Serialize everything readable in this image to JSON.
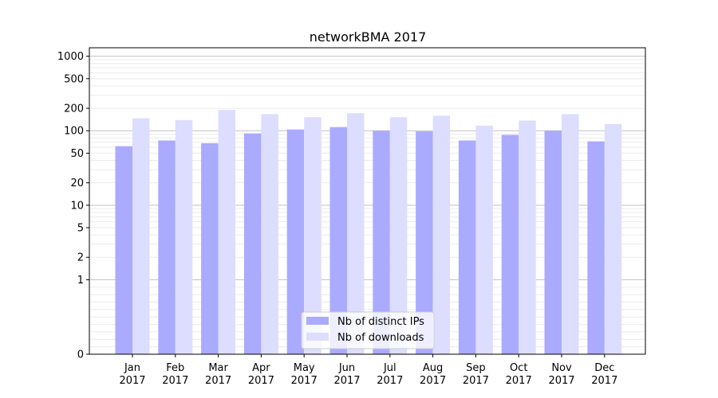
{
  "chart_data": {
    "type": "bar",
    "title": "networkBMA 2017",
    "xlabel": "",
    "ylabel": "",
    "yscale": "symlog",
    "ylim": [
      0,
      1300
    ],
    "yticks": [
      0,
      1,
      2,
      5,
      10,
      20,
      50,
      100,
      200,
      500,
      1000
    ],
    "grid": true,
    "legend_position": "bottom-center",
    "categories": [
      [
        "Jan",
        "2017"
      ],
      [
        "Feb",
        "2017"
      ],
      [
        "Mar",
        "2017"
      ],
      [
        "Apr",
        "2017"
      ],
      [
        "May",
        "2017"
      ],
      [
        "Jun",
        "2017"
      ],
      [
        "Jul",
        "2017"
      ],
      [
        "Aug",
        "2017"
      ],
      [
        "Sep",
        "2017"
      ],
      [
        "Oct",
        "2017"
      ],
      [
        "Nov",
        "2017"
      ],
      [
        "Dec",
        "2017"
      ]
    ],
    "series": [
      {
        "name": "Nb of distinct IPs",
        "color": "#aaaaff",
        "values": [
          62,
          74,
          68,
          92,
          104,
          112,
          100,
          98,
          74,
          88,
          100,
          72
        ]
      },
      {
        "name": "Nb of downloads",
        "color": "#ddddff",
        "values": [
          147,
          139,
          190,
          167,
          152,
          172,
          152,
          159,
          117,
          137,
          167,
          123
        ]
      }
    ]
  }
}
